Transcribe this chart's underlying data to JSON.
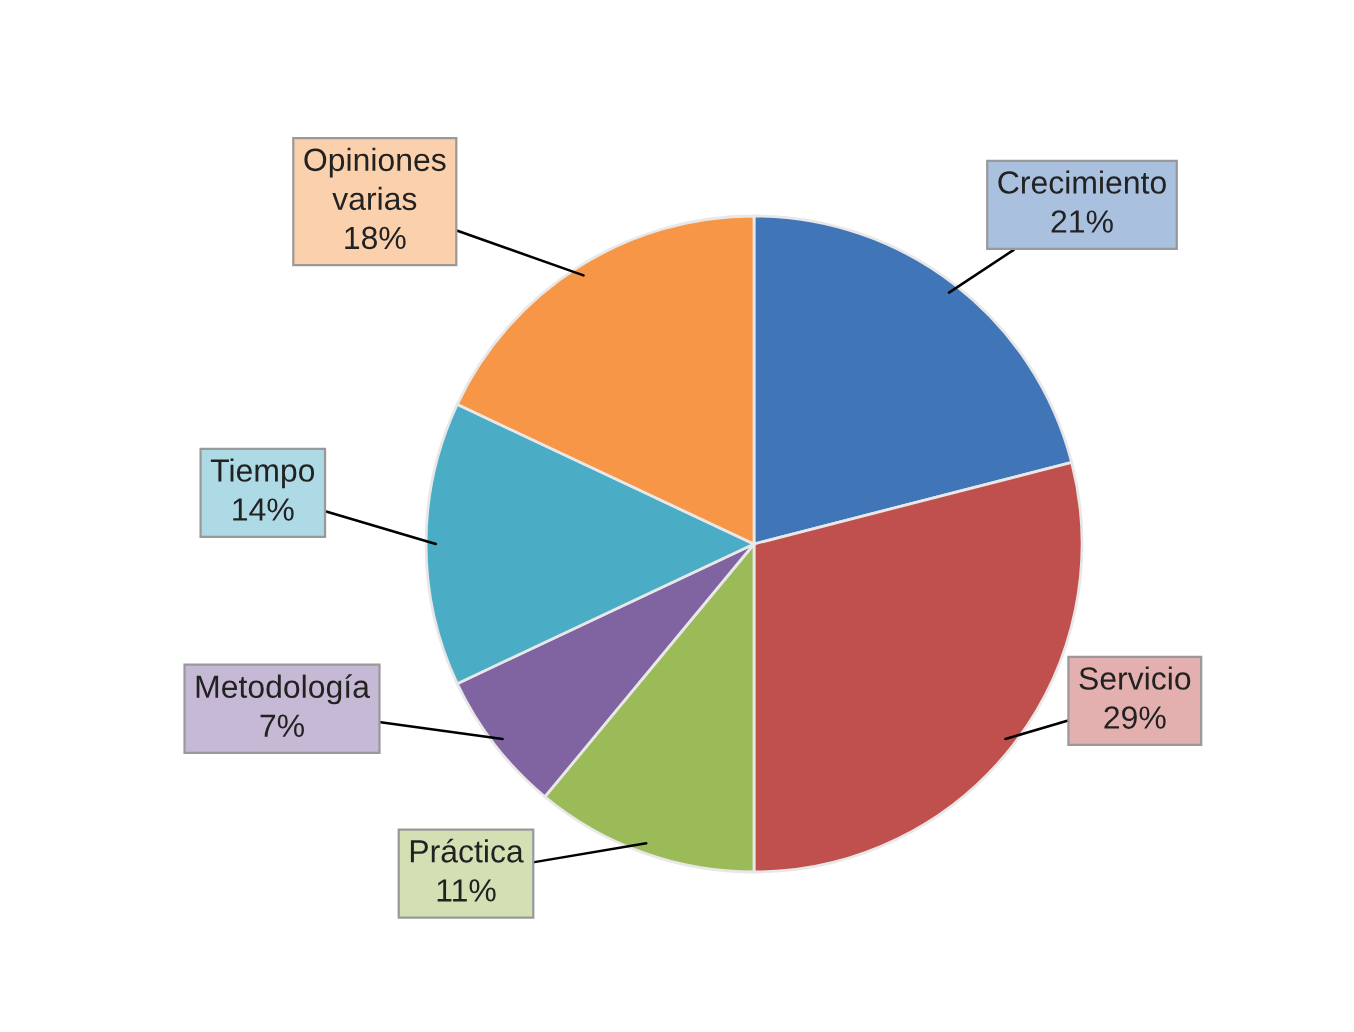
{
  "chart_data": {
    "type": "pie",
    "categories": [
      "Crecimiento",
      "Servicio",
      "Práctica",
      "Metodología",
      "Tiempo",
      "Opiniones varias"
    ],
    "values": [
      21,
      29,
      11,
      7,
      14,
      18
    ],
    "colors": [
      "#4076b8",
      "#c0504d",
      "#9bbb59",
      "#8064a2",
      "#4bacc6",
      "#f79646"
    ],
    "value_labels": [
      "21%",
      "29%",
      "11%",
      "7%",
      "14%",
      "18%"
    ],
    "legend": false
  }
}
